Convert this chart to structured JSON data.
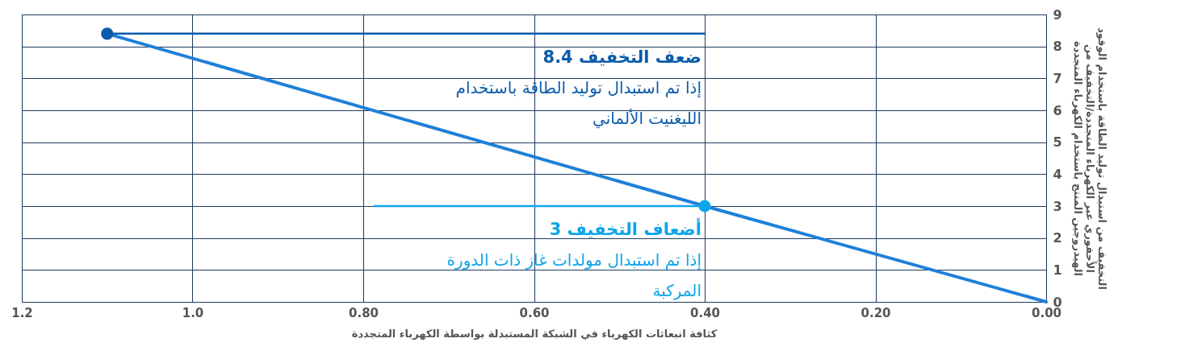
{
  "chart_data": {
    "type": "line",
    "xlabel": "كثافة انبعاثات الكهرباء في الشبكة المستبدلة بواسطة الكهرباء المتجددة",
    "ylabel": "التخفيف من استبدال توليد الطاقة باستخدام الوقود الأحفوري عبر الكهرباء المتجددة/التخفيف من الهيدروجين المنتج باستخدام الكهرباء المتجددة",
    "series": [
      {
        "color": "#1f80d8",
        "x": [
          1.1,
          0.4,
          0.0
        ],
        "values": [
          8.4,
          3,
          0
        ],
        "marker": "none"
      },
      {
        "type": "scatter",
        "colors": [
          "#0b5cab",
          "#0ea5e9"
        ],
        "x": [
          1.1,
          0.4
        ],
        "values": [
          8.4,
          3
        ],
        "marker": "circle"
      }
    ],
    "annotations": [
      {
        "text": "8.4 ضعف التخفيف",
        "x": 1.1,
        "y": 8.4
      },
      "إذا تم استبدال توليد الطاقة باستخدام الليغنيت الألماني",
      {
        "text": "3 أضعاف التخفيف",
        "x": 0.4,
        "y": 3
      },
      "إذا تم استبدال مولدات غاز ذات الدورة المركبة"
    ],
    "xlim": [
      1.2,
      0.0
    ],
    "xticks": [
      1.2,
      {
        "value": 1.0,
        "label": "1.0"
      },
      {
        "value": 0.8,
        "label": "0.80"
      },
      {
        "value": 0.6,
        "label": "0.60"
      },
      {
        "value": 0.4,
        "label": "0.40"
      },
      {
        "value": 0.2,
        "label": "0.20"
      },
      {
        "value": 0.0,
        "label": "0.00"
      }
    ],
    "ylim": [
      0,
      9
    ],
    "yticks": [
      0,
      1,
      2,
      3,
      4,
      5,
      6,
      7,
      8,
      9
    ],
    "grid": true
  }
}
